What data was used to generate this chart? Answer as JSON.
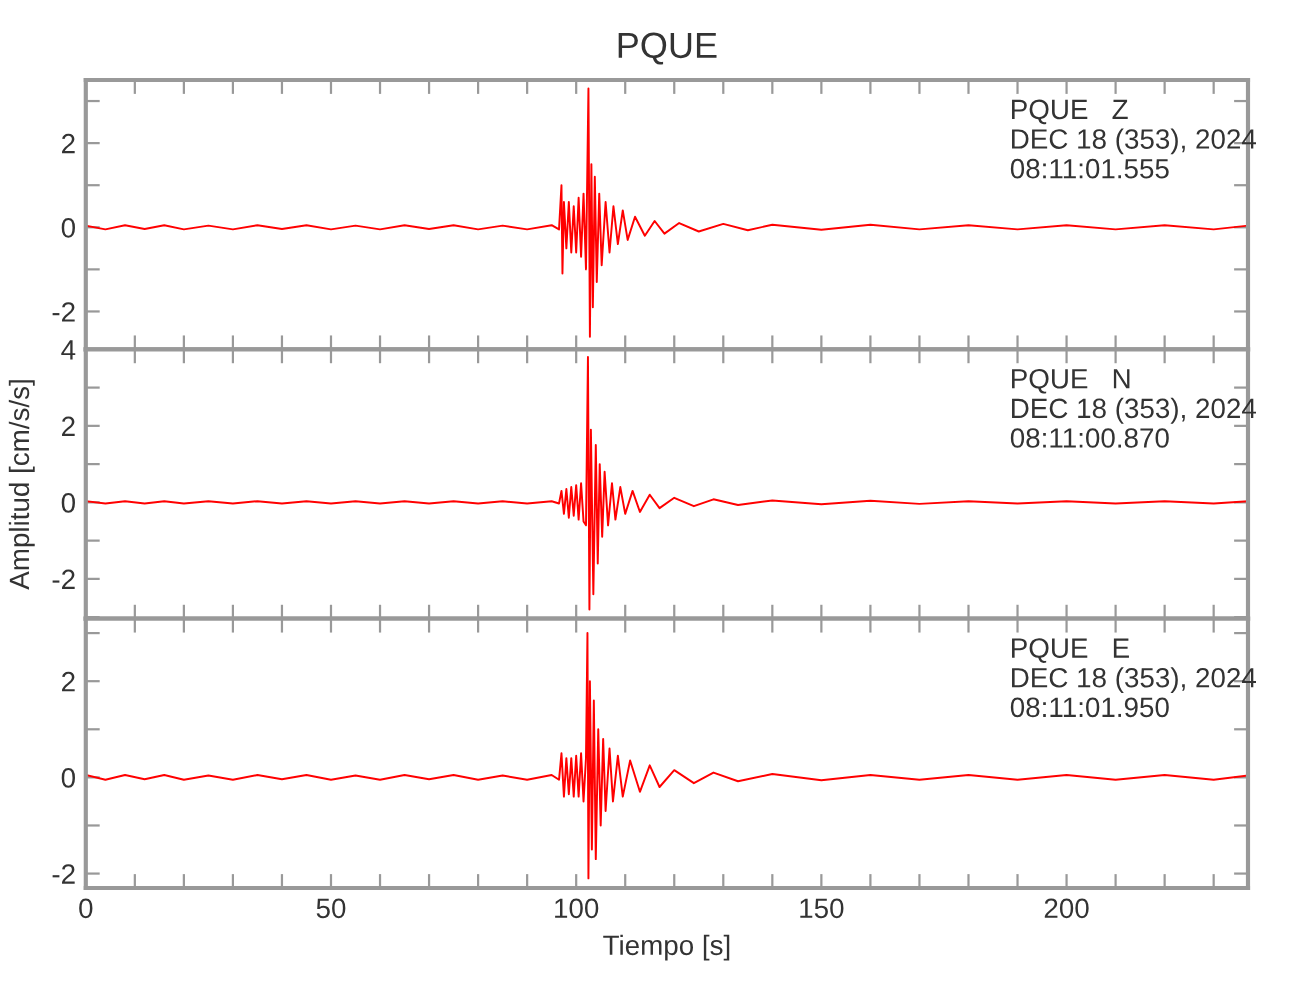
{
  "chart_data": [
    {
      "type": "line",
      "title": "PQUE",
      "annotations": [
        "PQUE   Z",
        "DEC 18 (353), 2024",
        "08:11:01.555"
      ],
      "tick_labels": "y",
      "grid": false,
      "marker": "none",
      "line_style": "solid",
      "xlim": [
        0,
        237
      ],
      "xticks": [
        0,
        {
          "value": 10,
          "label": null
        },
        {
          "value": 20,
          "label": null
        },
        {
          "value": 30,
          "label": null
        },
        {
          "value": 40,
          "label": null
        },
        50,
        {
          "value": 60,
          "label": null
        },
        {
          "value": 70,
          "label": null
        },
        {
          "value": 80,
          "label": null
        },
        {
          "value": 90,
          "label": null
        },
        100,
        {
          "value": 110,
          "label": null
        },
        {
          "value": 120,
          "label": null
        },
        {
          "value": 130,
          "label": null
        },
        {
          "value": 140,
          "label": null
        },
        150,
        {
          "value": 160,
          "label": null
        },
        {
          "value": 170,
          "label": null
        },
        {
          "value": 180,
          "label": null
        },
        {
          "value": 190,
          "label": null
        },
        200,
        {
          "value": 210,
          "label": null
        },
        {
          "value": 220,
          "label": null
        },
        {
          "value": 230,
          "label": null
        }
      ],
      "ylim": [
        -2.9,
        3.5
      ],
      "yticks": [
        -2,
        {
          "value": -1,
          "label": null
        },
        0,
        {
          "value": 1,
          "label": null
        },
        2,
        {
          "value": 3,
          "label": null
        }
      ],
      "series": [
        {
          "color": "#ff0000",
          "x": [
            0,
            4,
            8,
            12,
            16,
            20,
            25,
            30,
            35,
            40,
            45,
            50,
            55,
            60,
            65,
            70,
            75,
            80,
            85,
            90,
            95,
            96.5,
            97,
            97.2,
            97.5,
            98,
            98.5,
            99,
            99.5,
            100,
            100.5,
            101,
            101.5,
            102,
            102.5,
            102.8,
            103.1,
            103.4,
            103.8,
            104.2,
            104.7,
            105.2,
            106,
            106.8,
            107.6,
            108.5,
            109.5,
            110.5,
            112,
            114,
            116,
            118,
            121,
            125,
            130,
            135,
            140,
            150,
            160,
            170,
            180,
            190,
            200,
            210,
            220,
            230,
            237
          ],
          "values": [
            0.04,
            -0.05,
            0.05,
            -0.04,
            0.05,
            -0.05,
            0.04,
            -0.05,
            0.05,
            -0.04,
            0.05,
            -0.05,
            0.04,
            -0.05,
            0.05,
            -0.04,
            0.05,
            -0.05,
            0.04,
            -0.05,
            0.05,
            -0.05,
            1.0,
            -1.1,
            0.6,
            -0.5,
            0.6,
            -0.6,
            0.5,
            -0.6,
            0.7,
            -0.7,
            0.8,
            -1.0,
            3.3,
            -2.6,
            1.5,
            -1.9,
            1.2,
            -1.3,
            0.8,
            -0.9,
            0.6,
            -0.6,
            0.5,
            -0.4,
            0.4,
            -0.3,
            0.25,
            -0.2,
            0.15,
            -0.15,
            0.1,
            -0.1,
            0.08,
            -0.07,
            0.06,
            -0.06,
            0.06,
            -0.05,
            0.05,
            -0.05,
            0.05,
            -0.05,
            0.05,
            -0.05,
            0.04
          ]
        }
      ]
    },
    {
      "type": "line",
      "ylabel": "Amplitud [cm/s/s]",
      "annotations": [
        "PQUE   N",
        "DEC 18 (353), 2024",
        "08:11:00.870"
      ],
      "tick_labels": "y",
      "grid": false,
      "marker": "none",
      "line_style": "solid",
      "xlim": [
        0,
        237
      ],
      "xticks": [
        0,
        {
          "value": 10,
          "label": null
        },
        {
          "value": 20,
          "label": null
        },
        {
          "value": 30,
          "label": null
        },
        {
          "value": 40,
          "label": null
        },
        50,
        {
          "value": 60,
          "label": null
        },
        {
          "value": 70,
          "label": null
        },
        {
          "value": 80,
          "label": null
        },
        {
          "value": 90,
          "label": null
        },
        100,
        {
          "value": 110,
          "label": null
        },
        {
          "value": 120,
          "label": null
        },
        {
          "value": 130,
          "label": null
        },
        {
          "value": 140,
          "label": null
        },
        150,
        {
          "value": 160,
          "label": null
        },
        {
          "value": 170,
          "label": null
        },
        {
          "value": 180,
          "label": null
        },
        {
          "value": 190,
          "label": null
        },
        200,
        {
          "value": 210,
          "label": null
        },
        {
          "value": 220,
          "label": null
        },
        {
          "value": 230,
          "label": null
        }
      ],
      "ylim": [
        -3.04,
        4
      ],
      "yticks": [
        {
          "value": -3,
          "label": null
        },
        -2,
        {
          "value": -1,
          "label": null
        },
        0,
        {
          "value": 1,
          "label": null
        },
        2,
        {
          "value": 3,
          "label": null
        },
        4
      ],
      "series": [
        {
          "color": "#ff0000",
          "x": [
            0,
            4,
            8,
            12,
            16,
            20,
            25,
            30,
            35,
            40,
            45,
            50,
            55,
            60,
            65,
            70,
            75,
            80,
            85,
            90,
            95,
            96.5,
            97,
            97.5,
            98,
            98.5,
            99,
            99.5,
            100,
            100.5,
            101,
            101.5,
            102,
            102.4,
            102.7,
            103,
            103.5,
            104,
            104.4,
            104.8,
            105.3,
            105.8,
            106.5,
            107.3,
            108,
            109,
            110,
            111.5,
            113,
            115,
            117,
            120,
            124,
            128,
            133,
            140,
            150,
            160,
            170,
            180,
            190,
            200,
            210,
            220,
            230,
            237
          ],
          "values": [
            0.03,
            -0.03,
            0.03,
            -0.03,
            0.03,
            -0.03,
            0.03,
            -0.03,
            0.03,
            -0.03,
            0.03,
            -0.03,
            0.03,
            -0.03,
            0.03,
            -0.03,
            0.03,
            -0.03,
            0.03,
            -0.03,
            0.03,
            -0.03,
            0.3,
            -0.3,
            0.35,
            -0.4,
            0.4,
            -0.35,
            0.45,
            -0.45,
            0.5,
            -0.5,
            -0.6,
            3.8,
            -2.8,
            1.9,
            -2.4,
            1.5,
            -1.6,
            1.0,
            -0.9,
            0.8,
            -0.6,
            0.5,
            -0.45,
            0.4,
            -0.3,
            0.3,
            -0.25,
            0.2,
            -0.15,
            0.12,
            -0.1,
            0.08,
            -0.07,
            0.05,
            -0.05,
            0.04,
            -0.04,
            0.03,
            -0.03,
            0.03,
            -0.03,
            0.03,
            -0.03,
            0.03
          ]
        }
      ]
    },
    {
      "type": "line",
      "xlabel": "Tiempo [s]",
      "annotations": [
        "PQUE   E",
        "DEC 18 (353), 2024",
        "08:11:01.950"
      ],
      "grid": false,
      "marker": "none",
      "line_style": "solid",
      "xlim": [
        0,
        237
      ],
      "xticks": [
        0,
        {
          "value": 10,
          "label": null
        },
        {
          "value": 20,
          "label": null
        },
        {
          "value": 30,
          "label": null
        },
        {
          "value": 40,
          "label": null
        },
        50,
        {
          "value": 60,
          "label": null
        },
        {
          "value": 70,
          "label": null
        },
        {
          "value": 80,
          "label": null
        },
        {
          "value": 90,
          "label": null
        },
        100,
        {
          "value": 110,
          "label": null
        },
        {
          "value": 120,
          "label": null
        },
        {
          "value": 130,
          "label": null
        },
        {
          "value": 140,
          "label": null
        },
        150,
        {
          "value": 160,
          "label": null
        },
        {
          "value": 170,
          "label": null
        },
        {
          "value": 180,
          "label": null
        },
        {
          "value": 190,
          "label": null
        },
        200,
        {
          "value": 210,
          "label": null
        },
        {
          "value": 220,
          "label": null
        },
        {
          "value": 230,
          "label": null
        }
      ],
      "ylim": [
        -2.3,
        3.3
      ],
      "yticks": [
        -2,
        {
          "value": -1,
          "label": null
        },
        0,
        {
          "value": 1,
          "label": null
        },
        2,
        {
          "value": 3,
          "label": null
        }
      ],
      "series": [
        {
          "color": "#ff0000",
          "x": [
            0,
            4,
            8,
            12,
            16,
            20,
            25,
            30,
            35,
            40,
            45,
            50,
            55,
            60,
            65,
            70,
            75,
            80,
            85,
            90,
            95,
            96.5,
            97,
            97.5,
            98,
            98.5,
            99,
            99.5,
            100,
            100.5,
            101,
            101.5,
            102,
            102.3,
            102.5,
            102.8,
            103.2,
            103.6,
            104,
            104.5,
            105,
            105.5,
            106,
            106.8,
            107.5,
            108.5,
            109.5,
            111,
            113,
            115,
            117,
            120,
            124,
            128,
            133,
            140,
            150,
            160,
            170,
            180,
            190,
            200,
            210,
            220,
            230,
            237
          ],
          "values": [
            0.05,
            -0.05,
            0.05,
            -0.04,
            0.05,
            -0.05,
            0.04,
            -0.05,
            0.05,
            -0.04,
            0.05,
            -0.05,
            0.04,
            -0.05,
            0.05,
            -0.04,
            0.05,
            -0.05,
            0.04,
            -0.05,
            0.05,
            -0.05,
            0.5,
            -0.4,
            0.4,
            -0.35,
            0.4,
            -0.4,
            0.45,
            -0.4,
            0.5,
            -0.5,
            0.4,
            3.0,
            -2.1,
            2.0,
            -1.5,
            1.6,
            -1.7,
            1.0,
            -1.0,
            0.8,
            -0.7,
            0.6,
            -0.5,
            0.45,
            -0.4,
            0.35,
            -0.3,
            0.25,
            -0.2,
            0.15,
            -0.12,
            0.1,
            -0.08,
            0.07,
            -0.06,
            0.05,
            -0.05,
            0.05,
            -0.05,
            0.05,
            -0.05,
            0.05,
            -0.05,
            0.04
          ]
        }
      ]
    }
  ]
}
